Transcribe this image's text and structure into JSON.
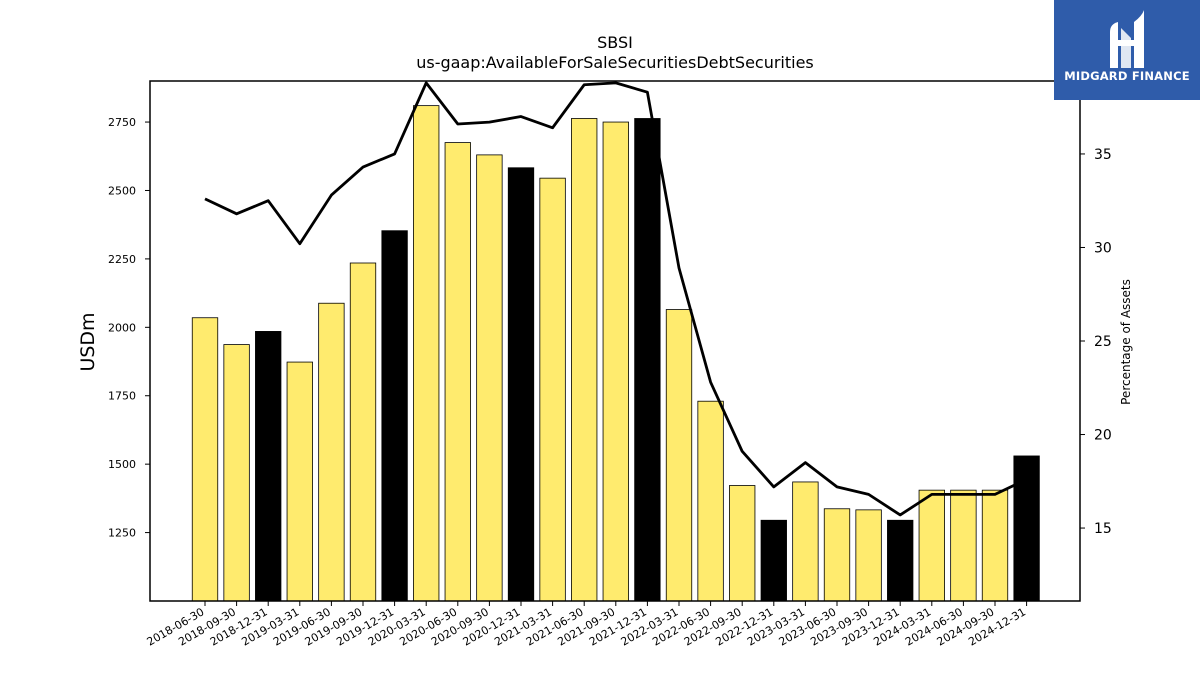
{
  "chart_data": {
    "type": "bar",
    "title": "SBSI",
    "subtitle": "us-gaap:AvailableForSaleSecuritiesDebtSecurities",
    "ylabel": "USDm",
    "y2label": "Percentage of Assets",
    "ylim": [
      1000,
      2900
    ],
    "y2lim": [
      11.1,
      38.9
    ],
    "yticks": [
      1250,
      1500,
      1750,
      2000,
      2250,
      2500,
      2750
    ],
    "y2ticks": [
      15,
      20,
      25,
      30,
      35
    ],
    "categories": [
      "2018-06-30",
      "2018-09-30",
      "2018-12-31",
      "2019-03-31",
      "2019-06-30",
      "2019-09-30",
      "2019-12-31",
      "2020-03-31",
      "2020-06-30",
      "2020-09-30",
      "2020-12-31",
      "2021-03-31",
      "2021-06-30",
      "2021-09-30",
      "2021-12-31",
      "2022-03-31",
      "2022-06-30",
      "2022-09-30",
      "2022-12-31",
      "2023-03-31",
      "2023-06-30",
      "2023-09-30",
      "2023-12-31",
      "2024-03-31",
      "2024-06-30",
      "2024-09-30",
      "2024-12-31"
    ],
    "series": [
      {
        "values": [
          2035,
          1937,
          1985,
          1873,
          2088,
          2235,
          2353,
          2810,
          2675,
          2630,
          2583,
          2545,
          2763,
          2750,
          2763,
          2065,
          1730,
          1422,
          1295,
          1435,
          1337,
          1333,
          1295,
          1405,
          1405,
          1405,
          1530
        ],
        "colors": [
          "#ffeb6e",
          "#ffeb6e",
          "#000000",
          "#ffeb6e",
          "#ffeb6e",
          "#ffeb6e",
          "#000000",
          "#ffeb6e",
          "#ffeb6e",
          "#ffeb6e",
          "#000000",
          "#ffeb6e",
          "#ffeb6e",
          "#ffeb6e",
          "#000000",
          "#ffeb6e",
          "#ffeb6e",
          "#ffeb6e",
          "#000000",
          "#ffeb6e",
          "#ffeb6e",
          "#ffeb6e",
          "#000000",
          "#ffeb6e",
          "#ffeb6e",
          "#ffeb6e",
          "#000000"
        ]
      },
      {
        "type": "line",
        "axis": "right",
        "color": "#000000",
        "values": [
          32.6,
          31.8,
          32.5,
          30.2,
          32.8,
          34.3,
          35.0,
          38.8,
          36.6,
          36.7,
          37.0,
          36.4,
          38.7,
          38.8,
          38.3,
          28.9,
          22.8,
          19.1,
          17.2,
          18.5,
          17.2,
          16.8,
          15.7,
          16.8,
          16.8,
          16.8,
          17.6
        ]
      }
    ]
  },
  "logo": {
    "text": "MIDGARD FINANCE",
    "icon": "midgard-logo-icon",
    "background": "#2f5caa"
  }
}
